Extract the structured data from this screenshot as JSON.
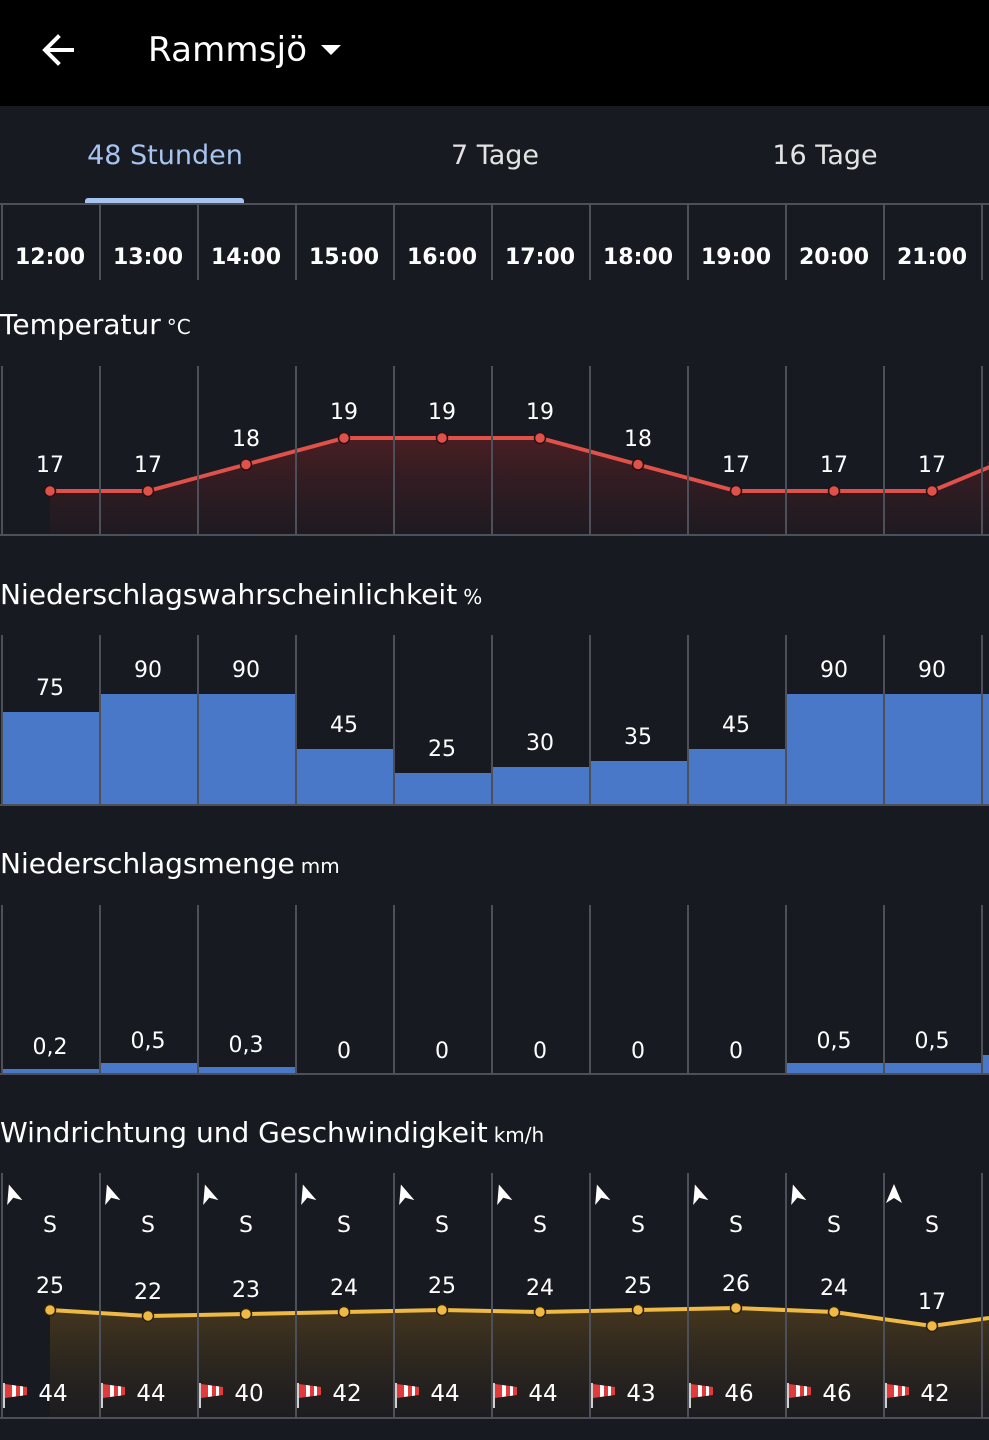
{
  "appbar": {
    "title": "Rammsjö",
    "back_icon": "arrow-left-icon",
    "dropdown_icon": "caret-down-icon"
  },
  "tabs": [
    {
      "label": "48 Stunden",
      "active": true
    },
    {
      "label": "7 Tage",
      "active": false
    },
    {
      "label": "16 Tage",
      "active": false
    }
  ],
  "times": [
    "12:00",
    "13:00",
    "14:00",
    "15:00",
    "16:00",
    "17:00",
    "18:00",
    "19:00",
    "20:00",
    "21:00"
  ],
  "sections": {
    "temperature": {
      "title": "Temperatur",
      "unit": "°C"
    },
    "precip_prob": {
      "title": "Niederschlagswahrscheinlichkeit",
      "unit": "%"
    },
    "precip_amount": {
      "title": "Niederschlagsmenge",
      "unit": "mm"
    },
    "wind": {
      "title": "Windrichtung und Geschwindigkeit",
      "unit": "km/h"
    }
  },
  "colors": {
    "background": "#171a21",
    "appbar": "#000000",
    "accent_tab": "#a7c3ef",
    "temperature_line": "#e0514a",
    "precip_bar": "#4a78c8",
    "wind_line": "#f0b943",
    "grid": "#4d5058"
  },
  "chart_data": [
    {
      "type": "line",
      "title": "Temperatur",
      "ylabel": "°C",
      "categories": [
        "12:00",
        "13:00",
        "14:00",
        "15:00",
        "16:00",
        "17:00",
        "18:00",
        "19:00",
        "20:00",
        "21:00"
      ],
      "values": [
        17,
        17,
        18,
        19,
        19,
        19,
        18,
        17,
        17,
        17
      ],
      "labels": [
        "17",
        "17",
        "18",
        "19",
        "19",
        "19",
        "18",
        "17",
        "17",
        "17"
      ]
    },
    {
      "type": "bar",
      "title": "Niederschlagswahrscheinlichkeit",
      "ylabel": "%",
      "categories": [
        "12:00",
        "13:00",
        "14:00",
        "15:00",
        "16:00",
        "17:00",
        "18:00",
        "19:00",
        "20:00",
        "21:00"
      ],
      "values": [
        75,
        90,
        90,
        45,
        25,
        30,
        35,
        45,
        90,
        90
      ],
      "labels": [
        "75",
        "90",
        "90",
        "45",
        "25",
        "30",
        "35",
        "45",
        "90",
        "90"
      ],
      "ylim": [
        0,
        100
      ]
    },
    {
      "type": "bar",
      "title": "Niederschlagsmenge",
      "ylabel": "mm",
      "categories": [
        "12:00",
        "13:00",
        "14:00",
        "15:00",
        "16:00",
        "17:00",
        "18:00",
        "19:00",
        "20:00",
        "21:00"
      ],
      "values": [
        0.2,
        0.5,
        0.3,
        0,
        0,
        0,
        0,
        0,
        0.5,
        0.5
      ],
      "labels": [
        "0,2",
        "0,5",
        "0,3",
        "0",
        "0",
        "0",
        "0",
        "0",
        "0,5",
        "0,5"
      ]
    },
    {
      "type": "line",
      "title": "Windrichtung und Geschwindigkeit",
      "ylabel": "km/h",
      "categories": [
        "12:00",
        "13:00",
        "14:00",
        "15:00",
        "16:00",
        "17:00",
        "18:00",
        "19:00",
        "20:00",
        "21:00"
      ],
      "series": [
        {
          "name": "speed",
          "values": [
            25,
            22,
            23,
            24,
            25,
            24,
            25,
            26,
            24,
            17
          ]
        },
        {
          "name": "gusts",
          "values": [
            44,
            44,
            40,
            42,
            44,
            44,
            43,
            46,
            46,
            42
          ]
        }
      ],
      "direction": [
        "S",
        "S",
        "S",
        "S",
        "S",
        "S",
        "S",
        "S",
        "S",
        "S"
      ],
      "speed_labels": [
        "25",
        "22",
        "23",
        "24",
        "25",
        "24",
        "25",
        "26",
        "24",
        "17"
      ],
      "gust_labels": [
        "44",
        "44",
        "40",
        "42",
        "44",
        "44",
        "43",
        "46",
        "46",
        "42"
      ]
    }
  ]
}
